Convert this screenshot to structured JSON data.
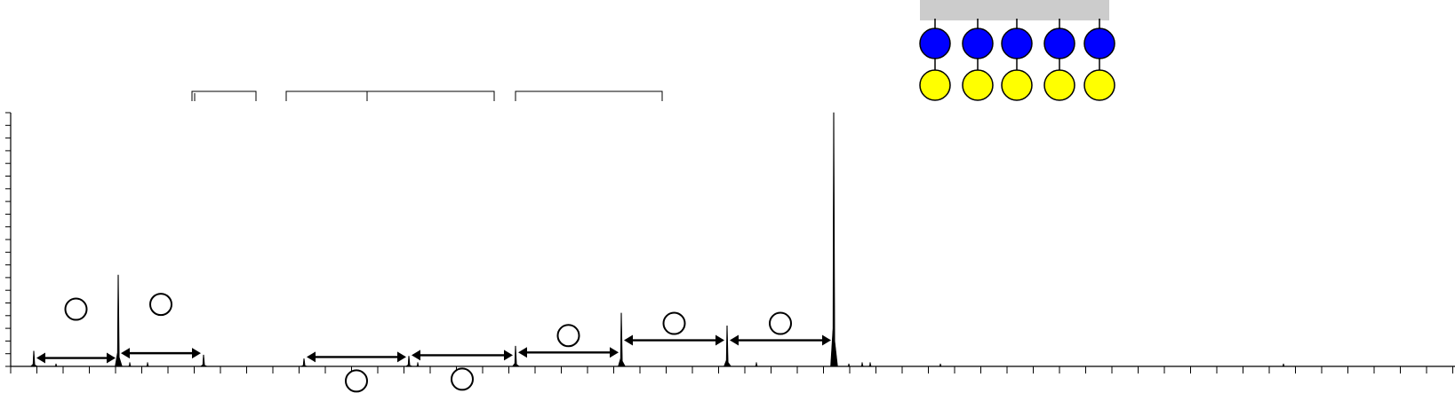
{
  "chart_data": {
    "type": "line",
    "title": "",
    "xlabel": "",
    "ylabel": "",
    "xlim": [
      0,
      1637
    ],
    "ylim": [
      0,
      100
    ],
    "grid": false,
    "peaks": [
      {
        "x": 38,
        "y": 6
      },
      {
        "x": 133,
        "y": 36
      },
      {
        "x": 229,
        "y": 4.5
      },
      {
        "x": 342,
        "y": 3
      },
      {
        "x": 460,
        "y": 4
      },
      {
        "x": 580,
        "y": 8
      },
      {
        "x": 699,
        "y": 21
      },
      {
        "x": 818,
        "y": 16
      },
      {
        "x": 938,
        "y": 100
      }
    ],
    "minor_peaks": [
      {
        "x": 63,
        "y": 1
      },
      {
        "x": 146,
        "y": 1.5
      },
      {
        "x": 166,
        "y": 1.5
      },
      {
        "x": 470,
        "y": 1.5
      },
      {
        "x": 851,
        "y": 1.5
      },
      {
        "x": 955,
        "y": 1
      },
      {
        "x": 970,
        "y": 1.5
      },
      {
        "x": 979,
        "y": 1.5
      },
      {
        "x": 1058,
        "y": 1
      },
      {
        "x": 1444,
        "y": 1
      }
    ],
    "spacings": [
      {
        "from": 38,
        "to": 133,
        "y": 3.3,
        "label_pos": "above"
      },
      {
        "from": 133,
        "to": 229,
        "y": 5.2,
        "label_pos": "above"
      },
      {
        "from": 342,
        "to": 460,
        "y": 3.7,
        "label_pos": "below"
      },
      {
        "from": 460,
        "to": 580,
        "y": 4.4,
        "label_pos": "below"
      },
      {
        "from": 580,
        "to": 699,
        "y": 5.5,
        "label_pos": "above"
      },
      {
        "from": 699,
        "to": 818,
        "y": 10.3,
        "label_pos": "above"
      },
      {
        "from": 818,
        "to": 938,
        "y": 10.3,
        "label_pos": "above"
      }
    ],
    "brackets": [
      {
        "from": 216,
        "to": 288
      },
      {
        "from": 322,
        "to": 556
      },
      {
        "from": 580,
        "to": 745
      }
    ],
    "structure": {
      "stem_count": 5,
      "base_color": "#cccccc",
      "top_color": "#0000ff",
      "bottom_color": "#ffff00"
    }
  }
}
